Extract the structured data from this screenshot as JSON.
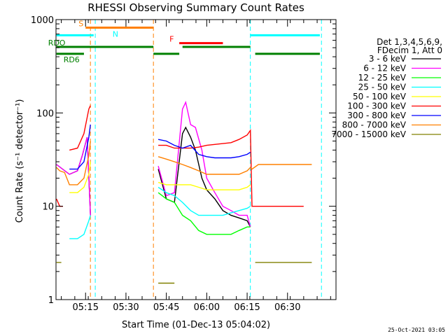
{
  "chart_data": {
    "type": "line",
    "title": "RHESSI Observing Summary Count Rates",
    "xlabel": "Start Time (01-Dec-13 05:04:02)",
    "ylabel": "Count Rate (s⁻¹ detector⁻¹)",
    "yscale": "log",
    "ylim": [
      1,
      1000
    ],
    "xlim": [
      5.067,
      6.8
    ],
    "x_unit": "hours (decimal, UT)",
    "x_ticks": [
      {
        "x": 5.25,
        "label": "05:15"
      },
      {
        "x": 5.5,
        "label": "05:30"
      },
      {
        "x": 5.75,
        "label": "05:45"
      },
      {
        "x": 6.0,
        "label": "06:00"
      },
      {
        "x": 6.25,
        "label": "06:15"
      },
      {
        "x": 6.5,
        "label": "06:30"
      }
    ],
    "y_ticks": [
      {
        "y": 1,
        "label": "1"
      },
      {
        "y": 10,
        "label": "10"
      },
      {
        "y": 100,
        "label": "100"
      },
      {
        "y": 1000,
        "label": "1000"
      }
    ],
    "legend_header": [
      "Det 1,3,4,5,6,9,",
      "FDecim 1, Att 0"
    ],
    "legend_position": "right",
    "grid": false,
    "footer": "25-Oct-2021 03:05",
    "series": [
      {
        "name": "3 - 6 keV",
        "color": "#000000",
        "x": [
          5.07,
          5.15,
          5.2,
          5.23,
          5.26,
          5.28,
          5.67,
          5.7,
          5.75,
          5.8,
          5.85,
          5.87,
          5.9,
          5.93,
          5.97,
          6.0,
          6.05,
          6.1,
          6.15,
          6.2,
          6.25,
          6.27,
          6.3,
          6.4,
          6.5,
          6.6,
          6.65
        ],
        "y": [
          28,
          22,
          24,
          35,
          55,
          8,
          null,
          25,
          12,
          11,
          60,
          70,
          55,
          40,
          20,
          15,
          12,
          9,
          8,
          7.5,
          7,
          6,
          null,
          null,
          null,
          null,
          null
        ]
      },
      {
        "name": "6 - 12 keV",
        "color": "#ff00ff",
        "x": [
          5.07,
          5.15,
          5.2,
          5.23,
          5.26,
          5.28,
          5.67,
          5.7,
          5.75,
          5.8,
          5.85,
          5.87,
          5.9,
          5.93,
          5.97,
          6.0,
          6.05,
          6.1,
          6.15,
          6.2,
          6.25,
          6.27
        ],
        "y": [
          28,
          22,
          24,
          35,
          55,
          8,
          null,
          27,
          13,
          14,
          110,
          130,
          75,
          70,
          40,
          20,
          14,
          10,
          9,
          8,
          8,
          6
        ]
      },
      {
        "name": "12 - 25 keV",
        "color": "#00ff00",
        "x": [
          5.07,
          5.15,
          5.2,
          5.23,
          5.26,
          5.28,
          5.67,
          5.7,
          5.75,
          5.8,
          5.85,
          5.9,
          5.95,
          6.0,
          6.05,
          6.1,
          6.15,
          6.2,
          6.25,
          6.27
        ],
        "y": [
          null,
          null,
          null,
          null,
          null,
          null,
          null,
          14,
          12,
          11,
          8,
          7,
          5.5,
          5,
          5,
          5,
          5,
          5.5,
          6,
          6
        ]
      },
      {
        "name": "25 - 50 keV",
        "color": "#00ffff",
        "x": [
          5.07,
          5.12,
          5.15,
          5.2,
          5.24,
          5.27,
          5.28,
          5.67,
          5.7,
          5.75,
          5.8,
          5.85,
          5.9,
          5.95,
          6.0,
          6.05,
          6.1,
          6.15,
          6.2,
          6.25,
          6.27
        ],
        "y": [
          null,
          null,
          4.5,
          4.5,
          5,
          7,
          8,
          null,
          16,
          14,
          13,
          11,
          9,
          8,
          8,
          8,
          8,
          8.5,
          9,
          9.5,
          10
        ]
      },
      {
        "name": "50 - 100 keV",
        "color": "#ffff00",
        "x": [
          5.07,
          5.12,
          5.15,
          5.2,
          5.24,
          5.27,
          5.28,
          5.67,
          5.7,
          5.75,
          5.8,
          5.85,
          5.9,
          5.95,
          6.0,
          6.05,
          6.1,
          6.15,
          6.2,
          6.25,
          6.27
        ],
        "y": [
          null,
          null,
          14,
          14,
          16,
          22,
          30,
          null,
          18,
          17,
          17,
          17,
          17,
          16,
          15,
          15,
          15,
          15,
          15,
          16,
          17
        ]
      },
      {
        "name": "100 - 300 keV",
        "color": "#ff0000",
        "x": [
          5.07,
          5.09,
          5.11,
          5.12,
          5.15,
          5.2,
          5.24,
          5.27,
          5.28,
          5.67,
          5.7,
          5.75,
          5.8,
          5.85,
          5.9,
          5.95,
          6.0,
          6.05,
          6.1,
          6.15,
          6.2,
          6.25,
          6.27,
          6.28,
          6.32,
          6.4,
          6.5,
          6.6,
          6.65
        ],
        "y": [
          12,
          10,
          10,
          null,
          40,
          42,
          60,
          110,
          120,
          null,
          45,
          45,
          42,
          42,
          42,
          43,
          45,
          46,
          47,
          48,
          52,
          58,
          65,
          10,
          10,
          10,
          10,
          10,
          null
        ]
      },
      {
        "name": "300 - 800 keV",
        "color": "#0000ff",
        "x": [
          5.07,
          5.12,
          5.15,
          5.2,
          5.24,
          5.27,
          5.28,
          5.67,
          5.7,
          5.75,
          5.8,
          5.85,
          5.9,
          5.95,
          6.0,
          6.05,
          6.1,
          6.15,
          6.2,
          6.25,
          6.27
        ],
        "y": [
          null,
          null,
          25,
          25,
          30,
          55,
          75,
          null,
          52,
          50,
          45,
          42,
          45,
          36,
          34,
          33,
          33,
          33,
          34,
          36,
          38
        ]
      },
      {
        "name": "800 - 7000 keV",
        "color": "#ff8000",
        "x": [
          5.07,
          5.09,
          5.12,
          5.15,
          5.2,
          5.24,
          5.27,
          5.28,
          5.67,
          5.7,
          5.75,
          5.8,
          5.85,
          5.9,
          5.95,
          6.0,
          6.05,
          6.1,
          6.15,
          6.2,
          6.25,
          6.27,
          6.28,
          6.32,
          6.4,
          6.5,
          6.6,
          6.65
        ],
        "y": [
          26,
          24,
          23,
          17,
          17,
          20,
          35,
          50,
          null,
          34,
          32,
          30,
          28,
          26,
          24,
          22,
          22,
          22,
          22,
          22,
          24,
          26,
          25,
          28,
          28,
          28,
          28,
          28
        ]
      },
      {
        "name": "7000 - 15000 keV",
        "color": "#808000",
        "x": [
          5.07,
          5.1,
          5.67,
          5.7,
          5.75,
          5.8,
          6.28,
          6.3,
          6.4,
          6.5,
          6.6,
          6.65
        ],
        "y": [
          2.5,
          2.5,
          null,
          1.5,
          1.5,
          1.5,
          null,
          2.5,
          2.5,
          2.5,
          2.5,
          2.5
        ]
      }
    ],
    "annotations": [
      {
        "label": "S",
        "color": "#ff8000",
        "x_start": 5.25,
        "x_end": 5.67,
        "y": 820
      },
      {
        "label": "N",
        "color": "#00ffff",
        "x_start": 5.07,
        "x_end": 5.3,
        "y": 680
      },
      {
        "label": "F",
        "color": "#ff0000",
        "x_start": 5.83,
        "x_end": 6.1,
        "y": 560
      },
      {
        "label": "RDO",
        "color": "#008000",
        "x_start": 5.07,
        "x_end": 5.67,
        "y": 510
      },
      {
        "label": "RD6",
        "color": "#008000",
        "x_start": 5.07,
        "x_end": 5.24,
        "y": 430
      },
      {
        "label": "",
        "color": "#008000",
        "x_start": 5.67,
        "x_end": 5.83,
        "y": 430
      },
      {
        "label": "",
        "color": "#008000",
        "x_start": 5.85,
        "x_end": 6.27,
        "y": 510
      },
      {
        "label": "",
        "color": "#008000",
        "x_start": 6.3,
        "x_end": 6.7,
        "y": 430
      },
      {
        "label": "",
        "color": "#00ffff",
        "x_start": 6.27,
        "x_end": 6.7,
        "y": 680
      }
    ],
    "vlines": [
      {
        "x": 5.28,
        "color": "#ff8000",
        "style": "dashed"
      },
      {
        "x": 5.31,
        "color": "#00ffff",
        "style": "dashed"
      },
      {
        "x": 5.67,
        "color": "#ff8000",
        "style": "dashed"
      },
      {
        "x": 6.27,
        "color": "#00ffff",
        "style": "dashed"
      },
      {
        "x": 6.71,
        "color": "#00ffff",
        "style": "dashed"
      }
    ]
  }
}
